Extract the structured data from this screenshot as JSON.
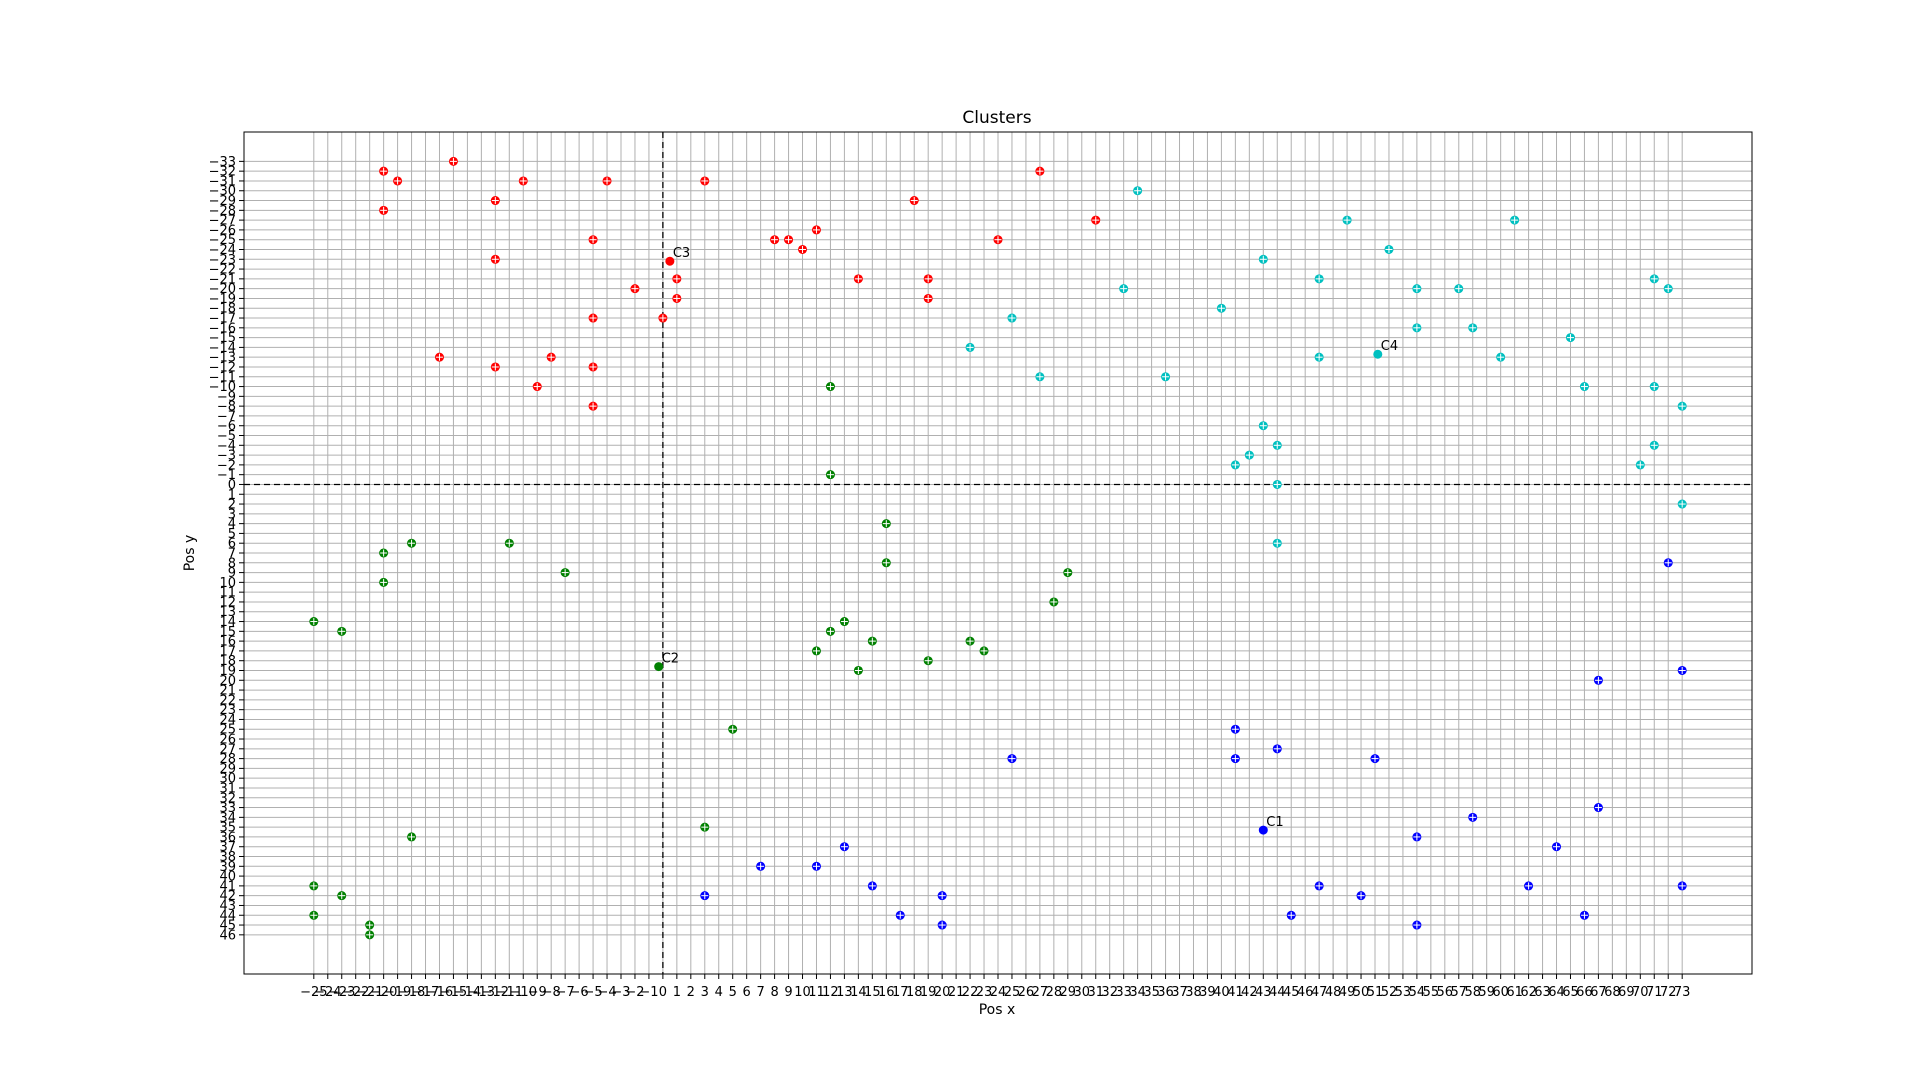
{
  "chart_data": {
    "type": "scatter",
    "title": "Clusters",
    "xlabel": "Pos x",
    "ylabel": "Pos y",
    "grid": true,
    "y_inverted": true,
    "xlim": [
      -30,
      78
    ],
    "ylim": [
      50,
      -36
    ],
    "x_tick_min": -25,
    "x_tick_max": 73,
    "y_tick_min": -33,
    "y_tick_max": 46,
    "crosshair": {
      "x": 0,
      "y": 0
    },
    "series": [
      {
        "color": "#ff0000",
        "points": [
          [
            -20,
            -32
          ],
          [
            -19,
            -31
          ],
          [
            -15,
            -33
          ],
          [
            -10,
            -31
          ],
          [
            -4,
            -31
          ],
          [
            3,
            -31
          ],
          [
            27,
            -32
          ],
          [
            -20,
            -28
          ],
          [
            -12,
            -29
          ],
          [
            -5,
            -25
          ],
          [
            18,
            -29
          ],
          [
            31,
            -27
          ],
          [
            11,
            -26
          ],
          [
            8,
            -25
          ],
          [
            9,
            -25
          ],
          [
            10,
            -24
          ],
          [
            24,
            -25
          ],
          [
            -12,
            -23
          ],
          [
            1,
            -21
          ],
          [
            14,
            -21
          ],
          [
            19,
            -21
          ],
          [
            -2,
            -20
          ],
          [
            1,
            -19
          ],
          [
            19,
            -19
          ],
          [
            -5,
            -17
          ],
          [
            0,
            -17
          ],
          [
            -16,
            -13
          ],
          [
            -8,
            -13
          ],
          [
            -12,
            -12
          ],
          [
            -5,
            -12
          ],
          [
            -9,
            -10
          ],
          [
            -5,
            -8
          ]
        ]
      },
      {
        "color": "#00c0c0",
        "points": [
          [
            34,
            -30
          ],
          [
            49,
            -27
          ],
          [
            61,
            -27
          ],
          [
            52,
            -24
          ],
          [
            43,
            -23
          ],
          [
            47,
            -21
          ],
          [
            71,
            -21
          ],
          [
            33,
            -20
          ],
          [
            54,
            -20
          ],
          [
            57,
            -20
          ],
          [
            72,
            -20
          ],
          [
            40,
            -18
          ],
          [
            25,
            -17
          ],
          [
            54,
            -16
          ],
          [
            58,
            -16
          ],
          [
            65,
            -15
          ],
          [
            22,
            -14
          ],
          [
            47,
            -13
          ],
          [
            60,
            -13
          ],
          [
            27,
            -11
          ],
          [
            36,
            -11
          ],
          [
            66,
            -10
          ],
          [
            71,
            -10
          ],
          [
            73,
            -8
          ],
          [
            43,
            -6
          ],
          [
            44,
            -4
          ],
          [
            71,
            -4
          ],
          [
            42,
            -3
          ],
          [
            41,
            -2
          ],
          [
            70,
            -2
          ],
          [
            44,
            0
          ],
          [
            73,
            2
          ],
          [
            44,
            6
          ]
        ]
      },
      {
        "color": "#008000",
        "points": [
          [
            12,
            -10
          ],
          [
            12,
            -1
          ],
          [
            16,
            4
          ],
          [
            -18,
            6
          ],
          [
            -11,
            6
          ],
          [
            -20,
            7
          ],
          [
            16,
            8
          ],
          [
            -7,
            9
          ],
          [
            29,
            9
          ],
          [
            -20,
            10
          ],
          [
            28,
            12
          ],
          [
            -25,
            14
          ],
          [
            13,
            14
          ],
          [
            -23,
            15
          ],
          [
            12,
            15
          ],
          [
            15,
            16
          ],
          [
            22,
            16
          ],
          [
            11,
            17
          ],
          [
            23,
            17
          ],
          [
            19,
            18
          ],
          [
            14,
            19
          ],
          [
            5,
            25
          ],
          [
            3,
            35
          ],
          [
            -18,
            36
          ],
          [
            -25,
            41
          ],
          [
            -23,
            42
          ],
          [
            -25,
            44
          ],
          [
            -21,
            45
          ],
          [
            -21,
            46
          ]
        ]
      },
      {
        "color": "#0000ff",
        "points": [
          [
            72,
            8
          ],
          [
            67,
            20
          ],
          [
            73,
            19
          ],
          [
            41,
            25
          ],
          [
            44,
            27
          ],
          [
            25,
            28
          ],
          [
            41,
            28
          ],
          [
            51,
            28
          ],
          [
            67,
            33
          ],
          [
            58,
            34
          ],
          [
            54,
            36
          ],
          [
            13,
            37
          ],
          [
            64,
            37
          ],
          [
            7,
            39
          ],
          [
            11,
            39
          ],
          [
            15,
            41
          ],
          [
            47,
            41
          ],
          [
            62,
            41
          ],
          [
            73,
            41
          ],
          [
            3,
            42
          ],
          [
            20,
            42
          ],
          [
            50,
            42
          ],
          [
            17,
            44
          ],
          [
            45,
            44
          ],
          [
            66,
            44
          ],
          [
            20,
            45
          ],
          [
            54,
            45
          ]
        ]
      }
    ],
    "centroids": [
      {
        "label": "C1",
        "x": 43,
        "y": 35.3,
        "color": "#0000ff"
      },
      {
        "label": "C2",
        "x": -0.3,
        "y": 18.6,
        "color": "#008000"
      },
      {
        "label": "C3",
        "x": 0.5,
        "y": -22.8,
        "color": "#ff0000"
      },
      {
        "label": "C4",
        "x": 51.2,
        "y": -13.3,
        "color": "#00c0c0"
      }
    ]
  }
}
